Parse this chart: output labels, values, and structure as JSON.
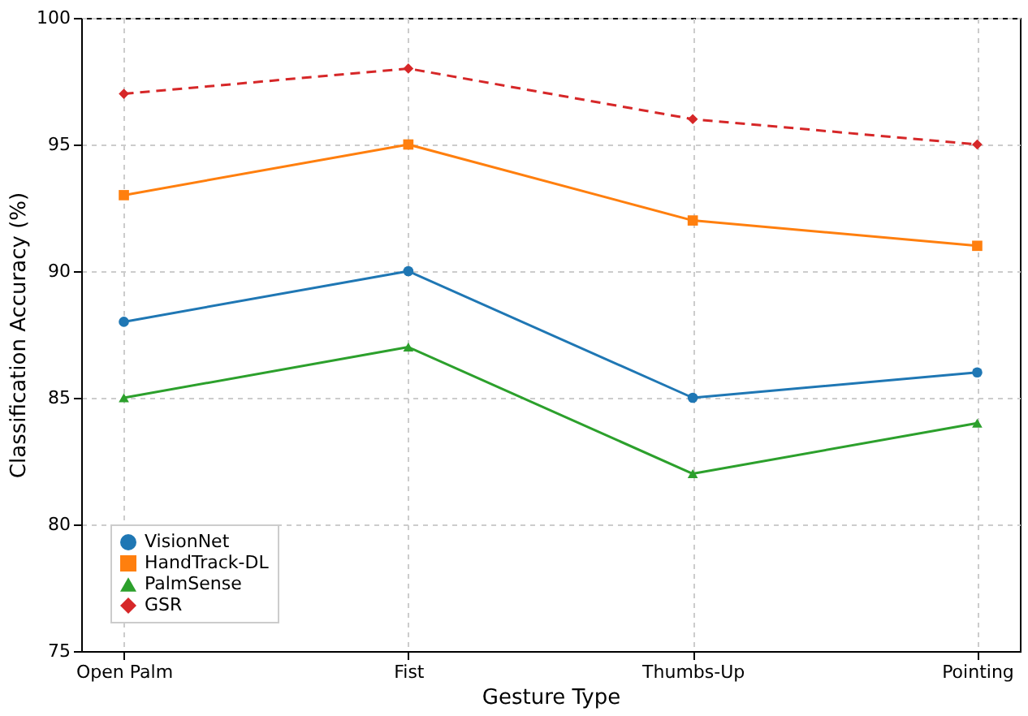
{
  "chart_data": {
    "type": "line",
    "xlabel": "Gesture Type",
    "ylabel": "Classification Accuracy (%)",
    "categories": [
      "Open Palm",
      "Fist",
      "Thumbs-Up",
      "Pointing"
    ],
    "series": [
      {
        "name": "VisionNet",
        "color": "#1f77b4",
        "values": [
          88,
          90,
          85,
          86
        ],
        "marker": "circle",
        "line_style": "solid"
      },
      {
        "name": "HandTrack-DL",
        "color": "#ff7f0e",
        "values": [
          93,
          95,
          92,
          91
        ],
        "marker": "square",
        "line_style": "solid"
      },
      {
        "name": "PalmSense",
        "color": "#2ca02c",
        "values": [
          85,
          87,
          82,
          84
        ],
        "marker": "triangle",
        "line_style": "solid"
      },
      {
        "name": "GSR",
        "color": "#d62728",
        "values": [
          97,
          98,
          96,
          95
        ],
        "marker": "diamond",
        "line_style": "dashed"
      }
    ],
    "ylim": [
      75,
      100
    ],
    "yticks": [
      75,
      80,
      85,
      90,
      95,
      100
    ],
    "grid": true,
    "legend": "bottom left"
  }
}
